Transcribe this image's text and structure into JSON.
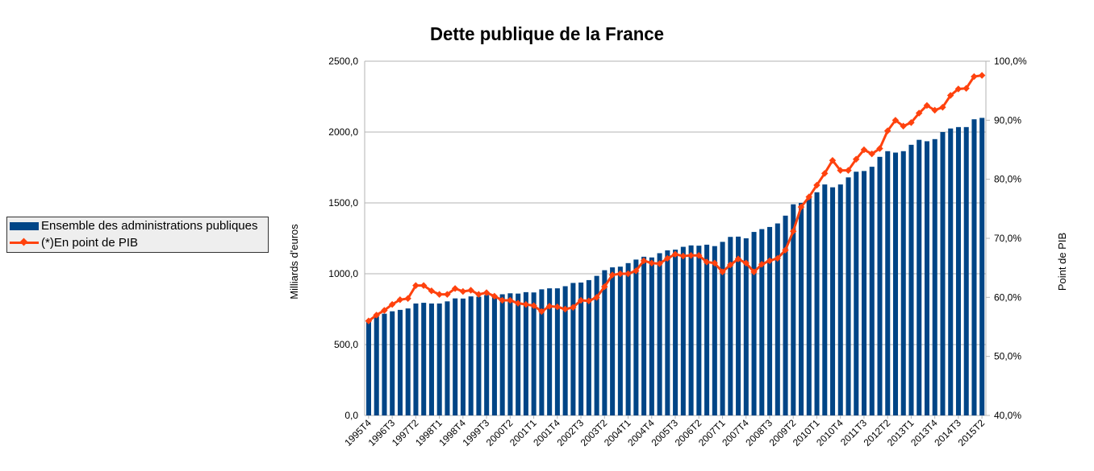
{
  "chart_data": {
    "type": "bar",
    "title": "Dette publique de la France",
    "ylabel": "Milliards d'euros",
    "y2label": "Point de PIB",
    "ylim": [
      0,
      2500
    ],
    "y2lim": [
      40,
      100
    ],
    "yticks": [
      "0,0",
      "500,0",
      "1000,0",
      "1500,0",
      "2000,0",
      "2500,0"
    ],
    "y2ticks": [
      "40,0%",
      "50,0%",
      "60,0%",
      "70,0%",
      "80,0%",
      "90,0%",
      "100,0%"
    ],
    "grid": true,
    "legend_position": "left",
    "x_tick_labels": [
      "1995T4",
      "1996T3",
      "1997T2",
      "1998T1",
      "1998T4",
      "1999T3",
      "2000T2",
      "2001T1",
      "2001T4",
      "2002T3",
      "2003T2",
      "2004T1",
      "2004T4",
      "2005T3",
      "2006T2",
      "2007T1",
      "2007T4",
      "2008T3",
      "2009T2",
      "2010T1",
      "2010T4",
      "2011T3",
      "2012T2",
      "2013T1",
      "2013T4",
      "2014T3",
      "2015T2"
    ],
    "x_start": "1995T4",
    "series": [
      {
        "name": "Ensemble des administrations publiques",
        "type": "bar",
        "axis": "left",
        "color": "#004586",
        "values": [
          663,
          700,
          718,
          735,
          745,
          755,
          790,
          795,
          790,
          790,
          805,
          826,
          825,
          840,
          838,
          850,
          849,
          855,
          862,
          860,
          870,
          868,
          890,
          897,
          897,
          912,
          935,
          938,
          955,
          985,
          1025,
          1045,
          1050,
          1075,
          1100,
          1120,
          1115,
          1145,
          1165,
          1170,
          1190,
          1200,
          1198,
          1205,
          1195,
          1225,
          1260,
          1262,
          1250,
          1295,
          1315,
          1330,
          1355,
          1410,
          1490,
          1500,
          1535,
          1575,
          1630,
          1610,
          1630,
          1680,
          1720,
          1725,
          1755,
          1825,
          1865,
          1855,
          1865,
          1910,
          1945,
          1935,
          1950,
          2000,
          2025,
          2035,
          2035,
          2090,
          2100
        ]
      },
      {
        "name": "(*)En point de PIB",
        "type": "line",
        "axis": "right",
        "color": "#ff420e",
        "values": [
          56.0,
          57.0,
          57.8,
          58.8,
          59.6,
          59.8,
          62.0,
          62.0,
          61.1,
          60.5,
          60.5,
          61.5,
          61.0,
          61.2,
          60.5,
          60.8,
          60.2,
          59.5,
          59.5,
          59.0,
          58.8,
          58.6,
          57.6,
          58.5,
          58.4,
          58.0,
          58.3,
          59.5,
          59.4,
          60.0,
          61.8,
          63.8,
          64.0,
          64.0,
          64.5,
          66.2,
          65.8,
          65.7,
          66.6,
          67.3,
          67.0,
          67.1,
          67.1,
          66.0,
          65.8,
          64.3,
          65.5,
          66.5,
          65.8,
          64.3,
          65.6,
          66.2,
          66.6,
          68.0,
          71.2,
          75.3,
          77.0,
          79.0,
          81.0,
          83.2,
          81.5,
          81.5,
          83.4,
          85.0,
          84.3,
          85.2,
          88.2,
          90.0,
          89.0,
          89.6,
          91.2,
          92.5,
          91.7,
          92.2,
          94.2,
          95.3,
          95.4,
          97.4,
          97.6
        ]
      }
    ]
  }
}
